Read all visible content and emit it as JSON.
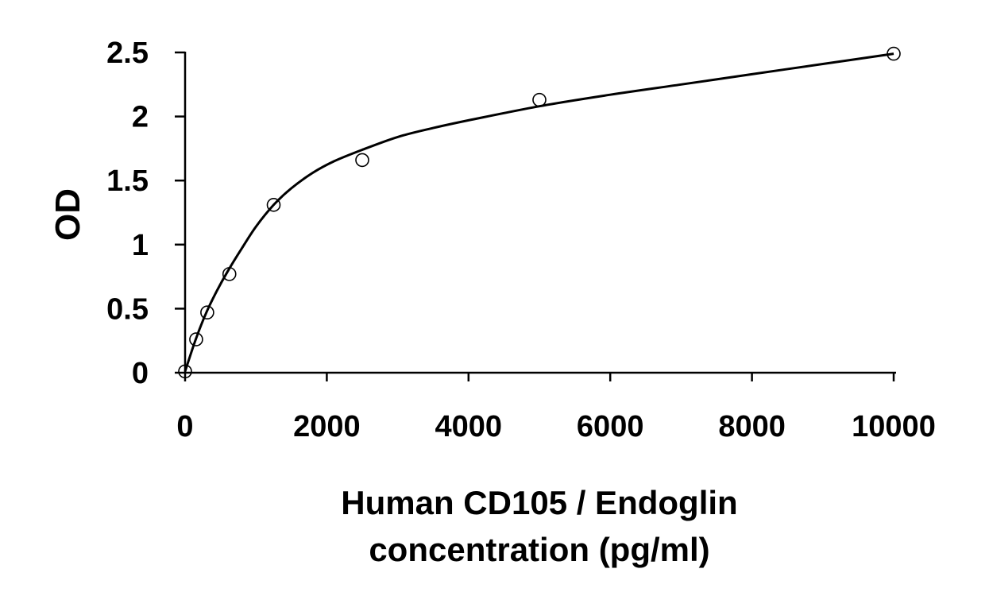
{
  "chart_data": {
    "type": "scatter",
    "title": "",
    "xlabel_lines": [
      "Human CD105 / Endoglin",
      "concentration (pg/ml)"
    ],
    "ylabel": "OD",
    "xlim": [
      0,
      10000
    ],
    "ylim": [
      0,
      2.5
    ],
    "x_ticks": [
      0,
      2000,
      4000,
      6000,
      8000,
      10000
    ],
    "y_ticks": [
      0,
      0.5,
      1,
      1.5,
      2,
      2.5
    ],
    "x_tick_labels": [
      "0",
      "2000",
      "4000",
      "6000",
      "8000",
      "10000"
    ],
    "y_tick_labels": [
      "0",
      "0.5",
      "1",
      "1.5",
      "2",
      "2.5"
    ],
    "grid": false,
    "legend": "none",
    "series": [
      {
        "kind": "points",
        "marker": "open-circle",
        "x": [
          0,
          156.25,
          312.5,
          625,
          1250,
          2500,
          5000,
          10000
        ],
        "y": [
          0.01,
          0.26,
          0.47,
          0.77,
          1.31,
          1.66,
          2.13,
          2.49
        ]
      },
      {
        "kind": "fit-curve",
        "x": [
          0,
          150,
          300,
          450,
          600,
          800,
          1000,
          1250,
          1500,
          1800,
          2100,
          2500,
          3000,
          3500,
          4000,
          5000,
          6000,
          7000,
          8000,
          9000,
          10000
        ],
        "y": [
          0.01,
          0.26,
          0.47,
          0.64,
          0.79,
          0.97,
          1.14,
          1.31,
          1.44,
          1.56,
          1.65,
          1.74,
          1.84,
          1.91,
          1.97,
          2.08,
          2.17,
          2.25,
          2.33,
          2.41,
          2.49
        ]
      }
    ]
  }
}
